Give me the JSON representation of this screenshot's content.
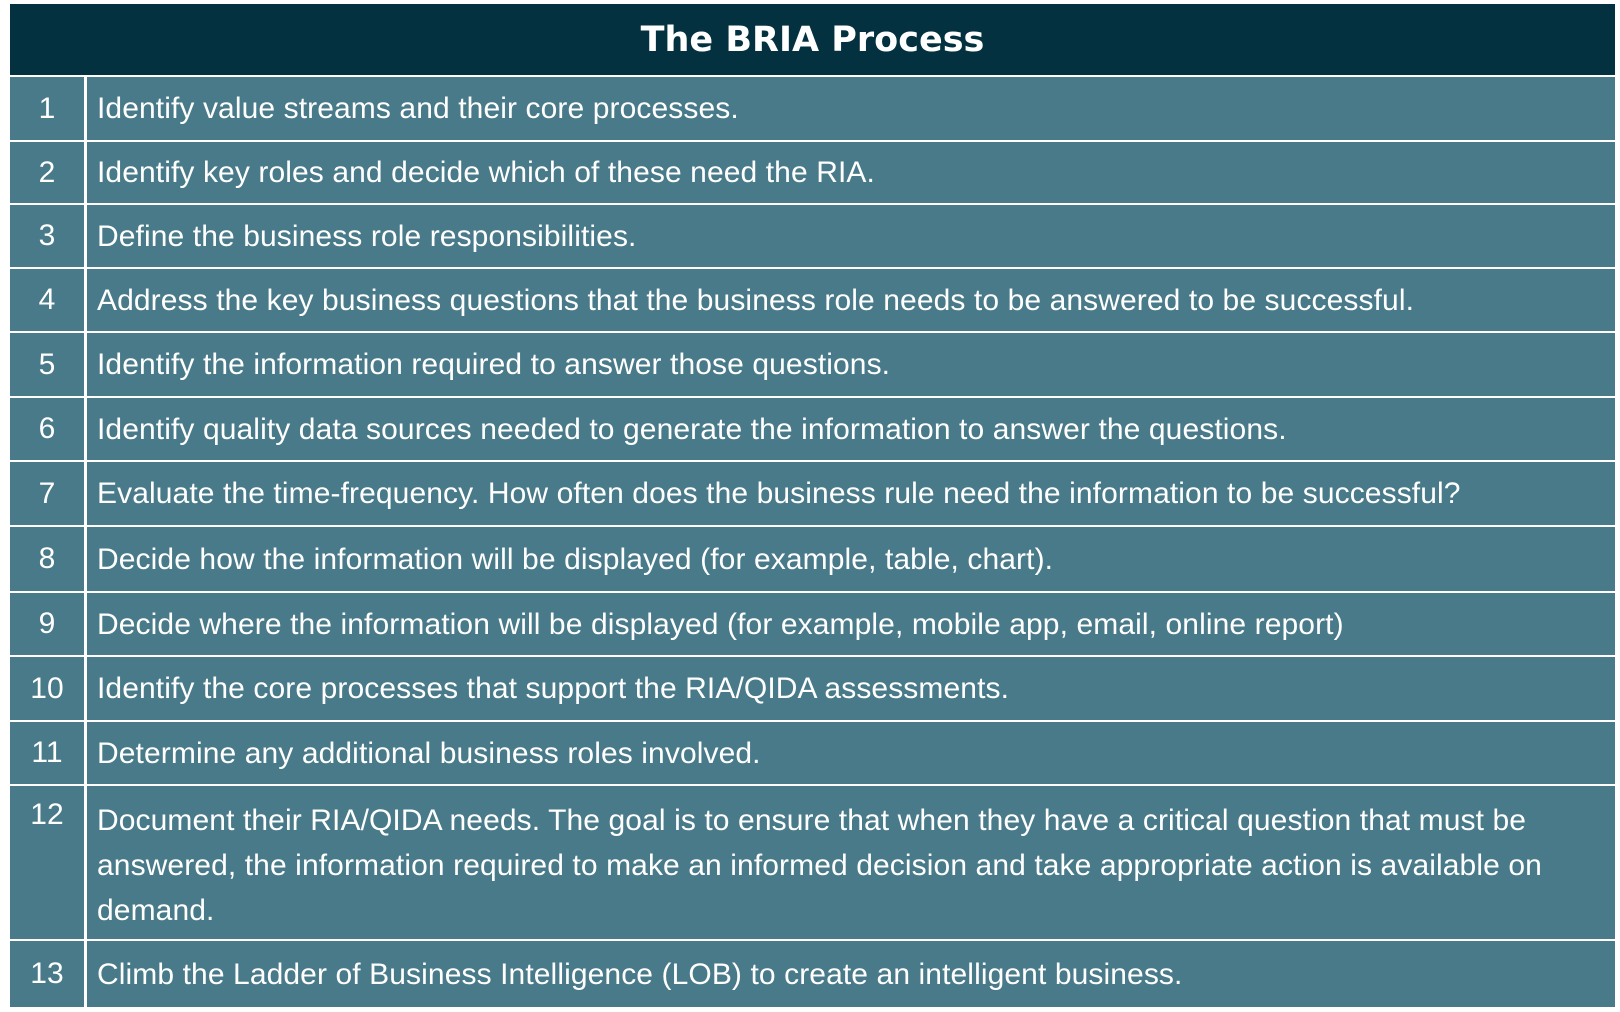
{
  "title": "The BRIA Process",
  "rows": [
    {
      "num": "1",
      "text": "Identify value streams and their core processes."
    },
    {
      "num": "2",
      "text": "Identify key roles and decide which of these need the RIA."
    },
    {
      "num": "3",
      "text": "Define the business role responsibilities."
    },
    {
      "num": "4",
      "text": "Address the key business questions that the business role needs to be answered to be successful."
    },
    {
      "num": "5",
      "text": "Identify the information required to answer those questions."
    },
    {
      "num": "6",
      "text": "Identify quality data sources needed to generate the information to answer the questions."
    },
    {
      "num": "7",
      "text": "Evaluate the time-frequency. How often does the business rule need the information to be successful?"
    },
    {
      "num": "8",
      "text": "Decide how the information will be displayed (for example, table, chart)."
    },
    {
      "num": "9",
      "text": "Decide where the information will be displayed (for example, mobile app, email, online report)"
    },
    {
      "num": "10",
      "text": "Identify the core processes that support the RIA/QIDA assessments."
    },
    {
      "num": "11",
      "text": "Determine any additional business roles involved."
    },
    {
      "num": "12",
      "text": "Document their RIA/QIDA needs. The goal is to ensure that when they have a critical question that must be answered, the information required to make an informed decision and take appropriate action is available on demand."
    },
    {
      "num": "13",
      "text": "Climb the Ladder of Business Intelligence (LOB) to create an intelligent business."
    }
  ]
}
